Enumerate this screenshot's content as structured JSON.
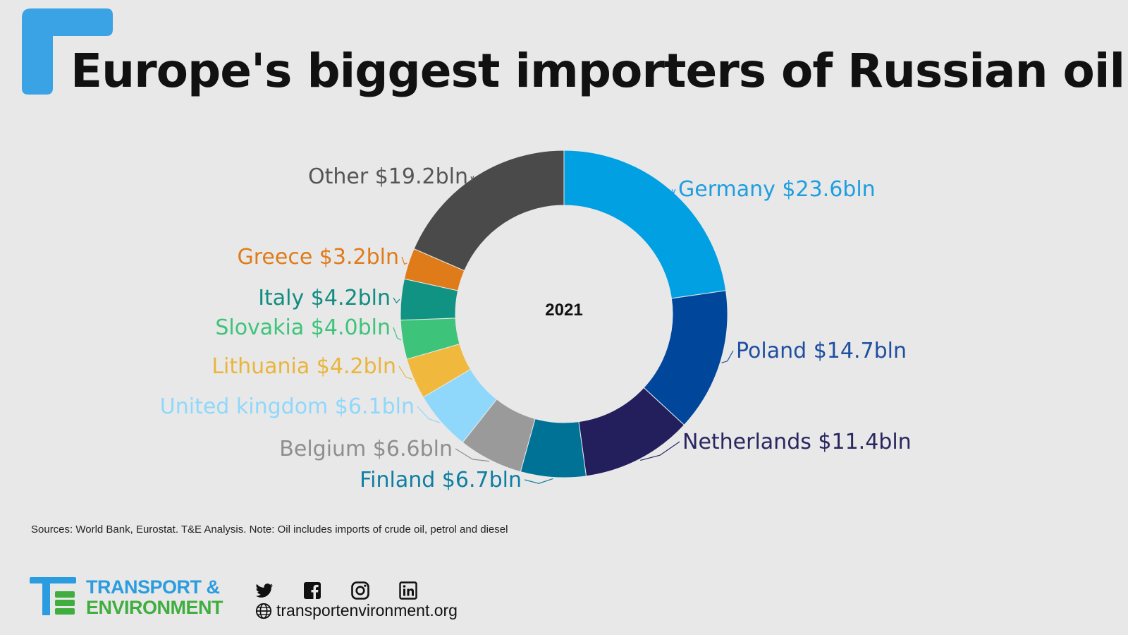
{
  "header": {
    "title": "Europe's biggest importers of Russian oil"
  },
  "chart_data": {
    "type": "pie",
    "center_label": "2021",
    "slices": [
      {
        "label": "Germany $23.6bln",
        "value": 23.6,
        "color": "#00a0e3"
      },
      {
        "label": "Poland $14.7bln",
        "value": 14.7,
        "color": "#00479c"
      },
      {
        "label": "Netherlands $11.4bln",
        "value": 11.4,
        "color": "#231e5c"
      },
      {
        "label": "Finland $6.7bln",
        "value": 6.7,
        "color": "#007296"
      },
      {
        "label": "Belgium $6.6bln",
        "value": 6.6,
        "color": "#9a9a9a"
      },
      {
        "label": "United kingdom $6.1bln",
        "value": 6.1,
        "color": "#8fd8fb"
      },
      {
        "label": "Lithuania $4.2bln",
        "value": 4.2,
        "color": "#f0b93d"
      },
      {
        "label": "Slovakia $4.0bln",
        "value": 4.0,
        "color": "#3dc47a"
      },
      {
        "label": "Italy $4.2bln",
        "value": 4.2,
        "color": "#109382"
      },
      {
        "label": "Greece $3.2bln",
        "value": 3.2,
        "color": "#e07b1a"
      },
      {
        "label": "Other $19.2bln",
        "value": 19.2,
        "color": "#4a4a4a"
      }
    ],
    "label_colors": [
      "#1e9ee0",
      "#1f4fa0",
      "#2a2660",
      "#0f7ea3",
      "#8e8e8e",
      "#8fd8fb",
      "#eab53c",
      "#3dc47a",
      "#108d80",
      "#e07b1a",
      "#555555"
    ]
  },
  "footer": {
    "source": "Sources: World Bank, Eurostat. T&E Analysis.  Note:  Oil includes imports of crude oil, petrol and diesel",
    "brand_line1": "TRANSPORT &",
    "brand_line2": "ENVIRONMENT",
    "website": "transportenvironment.org",
    "social_icons": [
      "twitter-icon",
      "facebook-icon",
      "instagram-icon",
      "linkedin-icon"
    ]
  },
  "colors": {
    "accent": "#3aa3e6",
    "brand_blue": "#2a9de0",
    "brand_green": "#3fae3f"
  }
}
